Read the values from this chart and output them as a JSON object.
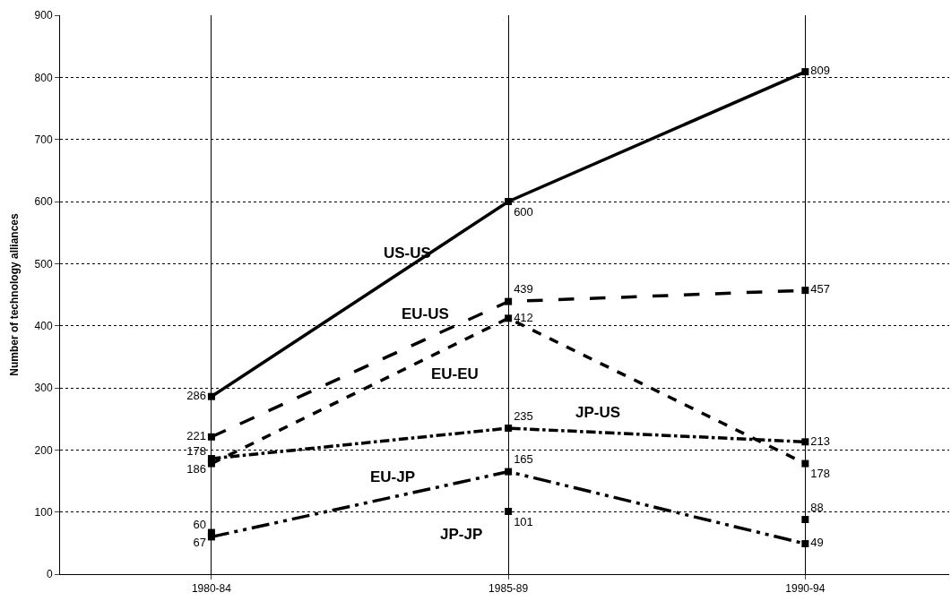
{
  "chart_data": {
    "type": "line",
    "ylabel": "Number of technology alliances",
    "categories": [
      "1980-84",
      "1985-89",
      "1990-94"
    ],
    "series": [
      {
        "name": "US-US",
        "color": "#000000",
        "values": [
          286,
          600,
          809
        ],
        "line_style": "solid",
        "value_labels": [
          "286",
          "600",
          "809"
        ]
      },
      {
        "name": "EU-US",
        "color": "#000000",
        "values": [
          221,
          439,
          457
        ],
        "line_style": "dashed",
        "value_labels": [
          "221",
          "439",
          "457"
        ]
      },
      {
        "name": "EU-EU",
        "color": "#000000",
        "values": [
          178,
          412,
          178
        ],
        "line_style": "dotted",
        "value_labels": [
          "178",
          "412",
          "178"
        ]
      },
      {
        "name": "JP-US",
        "color": "#000000",
        "values": [
          186,
          235,
          213
        ],
        "line_style": "dashdot",
        "value_labels": [
          "186",
          "235",
          "213"
        ]
      },
      {
        "name": "EU-JP",
        "color": "#000000",
        "values": [
          60,
          165,
          49
        ],
        "line_style": "dashdotdot",
        "value_labels": [
          "60",
          "165",
          "49"
        ]
      },
      {
        "name": "JP-JP",
        "color": "#000000",
        "type": "scatter",
        "values": [
          67,
          101,
          88
        ],
        "value_labels": [
          "67",
          "101",
          "88"
        ]
      }
    ],
    "ylim": [
      0,
      900
    ],
    "yticks": [
      0,
      100,
      200,
      300,
      400,
      500,
      600,
      700,
      800,
      900
    ],
    "grid": true,
    "marker": "square",
    "legend": false
  }
}
